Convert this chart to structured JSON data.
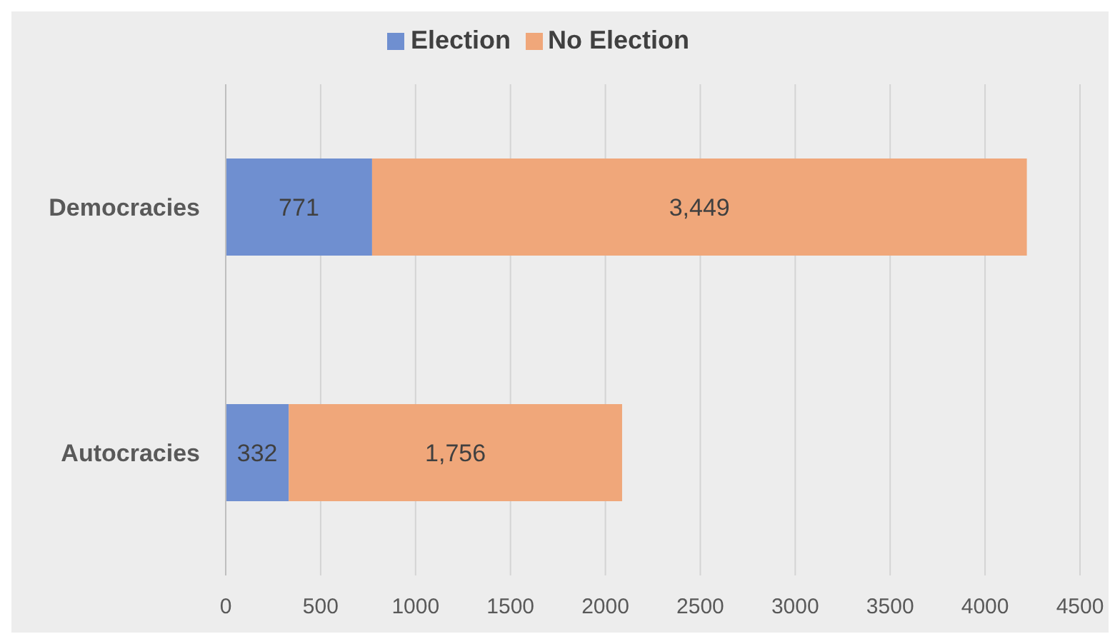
{
  "chart_data": {
    "type": "bar",
    "orientation": "horizontal",
    "stacked": true,
    "categories": [
      "Democracies",
      "Autocracies"
    ],
    "series": [
      {
        "name": "Election",
        "color": "#6f8fd0",
        "values": [
          771,
          332
        ],
        "value_labels": [
          "771",
          "332"
        ]
      },
      {
        "name": "No Election",
        "color": "#f0a77a",
        "values": [
          3449,
          1756
        ],
        "value_labels": [
          "3,449",
          "1,756"
        ]
      }
    ],
    "xlim": [
      0,
      4500
    ],
    "xticks": [
      0,
      500,
      1000,
      1500,
      2000,
      2500,
      3000,
      3500,
      4000,
      4500
    ],
    "grid": "x",
    "legend": "top"
  }
}
